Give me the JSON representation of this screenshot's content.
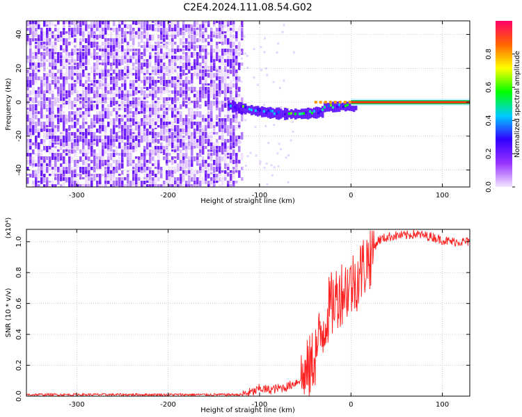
{
  "title": "C2E4.2024.111.08.54.G02",
  "chart_data": [
    {
      "type": "heatmap",
      "xlabel": "Height of straight line (km)",
      "ylabel": "Frequency (Hz)",
      "xlim": [
        -355,
        130
      ],
      "ylim": [
        -50,
        48
      ],
      "xticks": [
        -300,
        -200,
        -100,
        0,
        100
      ],
      "yticks": [
        -40,
        -20,
        0,
        20,
        40
      ],
      "colorbar": {
        "label": "Normalized spectral amplitude",
        "range": [
          0.0,
          1.0
        ],
        "ticks": [
          "0.0",
          "0.2",
          "0.4",
          "0.6",
          "0.8"
        ],
        "colors": [
          "#f2e6ff",
          "#9933ff",
          "#3300ff",
          "#00ccff",
          "#00ff00",
          "#ffff00",
          "#ff6600",
          "#ff0066"
        ]
      },
      "regions": [
        {
          "desc": "broadband noise",
          "x": [
            -355,
            -130
          ],
          "freq": [
            -50,
            48
          ],
          "amplitude": 0.15
        },
        {
          "desc": "signal onset band",
          "x": [
            -135,
            -25
          ],
          "freq": [
            -15,
            5
          ],
          "amplitude": 0.45
        },
        {
          "desc": "steady tone",
          "x": [
            0,
            130
          ],
          "freq": [
            0,
            0
          ],
          "amplitude": 0.95
        }
      ],
      "grid": true
    },
    {
      "type": "line",
      "xlabel": "Height of straight line (km)",
      "ylabel": "SNR (10 * v/v)",
      "yscale_label": "(x10⁴)",
      "xlim": [
        -355,
        130
      ],
      "ylim": [
        0,
        1.08
      ],
      "xticks": [
        -300,
        -200,
        -100,
        0,
        100
      ],
      "yticks": [
        "0.0",
        "0.2",
        "0.4",
        "0.6",
        "0.8",
        "1.0"
      ],
      "series": [
        {
          "color": "#ff2222",
          "x": [
            -355,
            -300,
            -250,
            -200,
            -150,
            -120,
            -105,
            -100,
            -90,
            -80,
            -70,
            -60,
            -50,
            -45,
            -40,
            -35,
            -30,
            -25,
            -20,
            -15,
            -10,
            -5,
            0,
            5,
            10,
            15,
            20,
            25,
            30,
            35,
            40,
            50,
            60,
            70,
            80,
            90,
            100,
            110,
            120,
            130
          ],
          "y": [
            0.01,
            0.01,
            0.01,
            0.01,
            0.01,
            0.01,
            0.03,
            0.05,
            0.04,
            0.05,
            0.06,
            0.09,
            0.13,
            0.18,
            0.26,
            0.35,
            0.45,
            0.55,
            0.6,
            0.65,
            0.68,
            0.7,
            0.72,
            0.75,
            0.8,
            0.85,
            0.9,
            0.96,
            1.01,
            1.02,
            1.03,
            1.04,
            1.04,
            1.05,
            1.04,
            1.03,
            1.01,
            1.0,
            1.0,
            1.0
          ]
        }
      ],
      "grid": true
    }
  ]
}
